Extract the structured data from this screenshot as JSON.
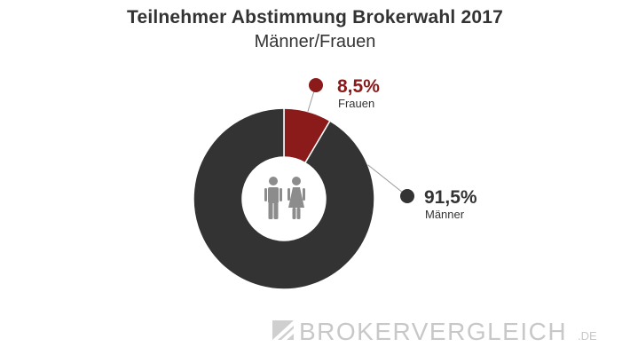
{
  "chart_data": {
    "type": "pie",
    "variant": "donut",
    "title": "Teilnehmer Abstimmung Brokerwahl 2017",
    "subtitle": "Männer/Frauen",
    "slices": [
      {
        "label": "Frauen",
        "value": 8.5,
        "value_label": "8,5%",
        "color": "#8b1a1a"
      },
      {
        "label": "Männer",
        "value": 91.5,
        "value_label": "91,5%",
        "color": "#333333"
      }
    ],
    "center_icons": [
      "male-figure-icon",
      "female-figure-icon"
    ]
  },
  "watermark": {
    "name": "BrokerVergleich",
    "suffix": ".de",
    "color": "#c8c8c8"
  }
}
